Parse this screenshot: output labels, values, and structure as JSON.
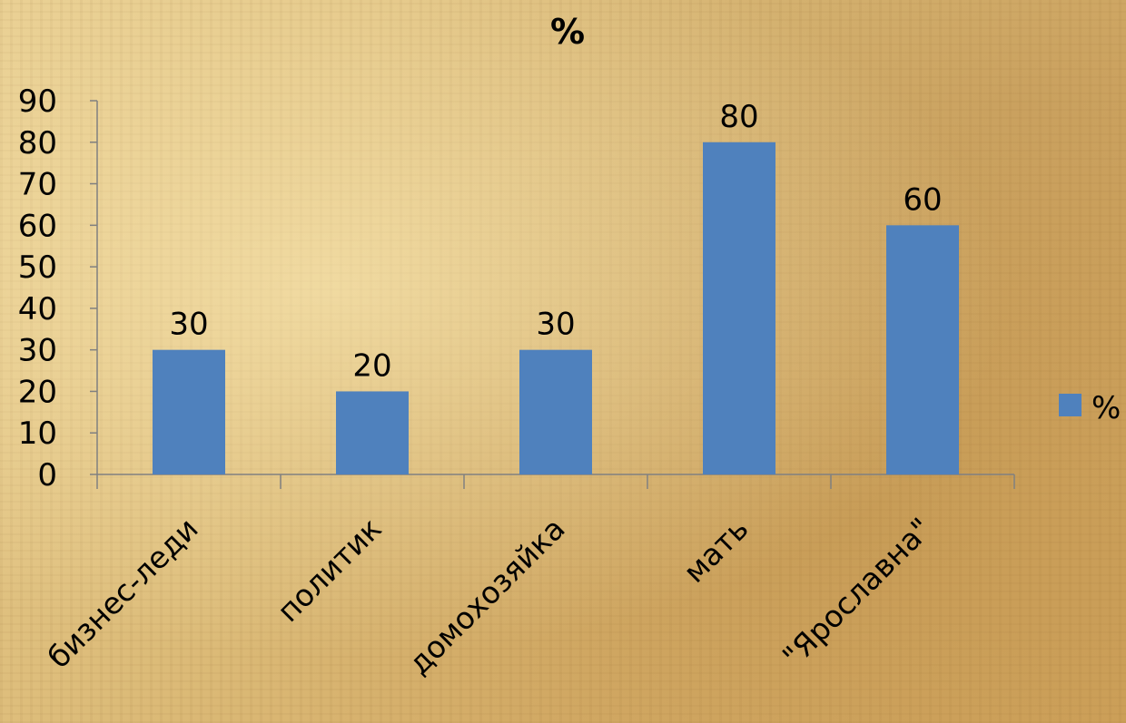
{
  "chart_data": {
    "type": "bar",
    "title": "%",
    "categories": [
      "бизнес-леди",
      "политик",
      "домохозяйка",
      "мать",
      "\"Ярославна\""
    ],
    "series": [
      {
        "name": "%",
        "values": [
          30,
          20,
          30,
          80,
          60
        ]
      }
    ],
    "data_labels": [
      "30",
      "20",
      "30",
      "80",
      "60"
    ],
    "ylim": [
      0,
      90
    ],
    "yticks": [
      0,
      10,
      20,
      30,
      40,
      50,
      60,
      70,
      80,
      90
    ],
    "ytick_labels": [
      "0",
      "10",
      "20",
      "30",
      "40",
      "50",
      "60",
      "70",
      "80",
      "90"
    ],
    "grid": false,
    "legend_position": "right",
    "colors": {
      "bar": "#4f81bd",
      "text": "#000000",
      "axis": "#808080"
    }
  }
}
